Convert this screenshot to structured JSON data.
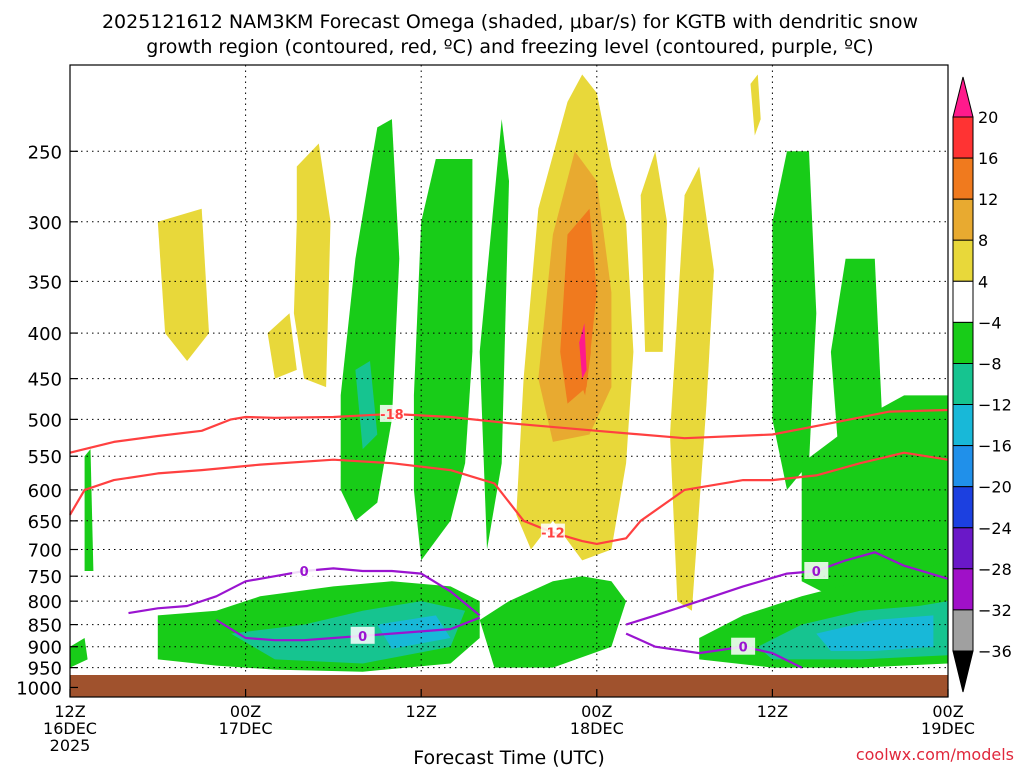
{
  "chart_data": {
    "type": "heatmap",
    "title_line1": "2025121612 NAM3KM Forecast Omega (shaded, μbar/s) for KGTB with dendritic snow",
    "title_line2": "growth region (contoured, red, ºC) and freezing level (contoured, purple, ºC)",
    "xlabel": "Forecast Time (UTC)",
    "ylabel": "",
    "credit": "coolwx.com/models",
    "x_ticks": [
      {
        "line1": "12Z",
        "line2": "16DEC",
        "line3": "2025",
        "hour": 0
      },
      {
        "line1": "00Z",
        "line2": "17DEC",
        "line3": "",
        "hour": 12
      },
      {
        "line1": "12Z",
        "line2": "",
        "line3": "",
        "hour": 24
      },
      {
        "line1": "00Z",
        "line2": "18DEC",
        "line3": "",
        "hour": 36
      },
      {
        "line1": "12Z",
        "line2": "",
        "line3": "",
        "hour": 48
      },
      {
        "line1": "00Z",
        "line2": "19DEC",
        "line3": "",
        "hour": 60
      }
    ],
    "xlim": [
      0,
      60
    ],
    "y_ticks": [
      250,
      300,
      350,
      400,
      450,
      500,
      550,
      600,
      650,
      700,
      750,
      800,
      850,
      900,
      950,
      1000
    ],
    "ylim": [
      200,
      1025
    ],
    "y_scale": "log-pressure",
    "grid": true,
    "colorbar": {
      "labels": [
        "20",
        "16",
        "12",
        "8",
        "4",
        "−4",
        "−8",
        "−12",
        "−16",
        "−20",
        "−24",
        "−28",
        "−32",
        "−36"
      ],
      "colors": [
        "#ff1a8c",
        "#ff3333",
        "#f07a1e",
        "#e8aa30",
        "#e8d83a",
        "#ffffff",
        "#18cc18",
        "#16c490",
        "#18b8d8",
        "#2090ea",
        "#1c40e0",
        "#6a18c8",
        "#a010c8",
        "#a0a0a0",
        "#000000"
      ]
    },
    "colors": {
      "strong_rise": "#f07a1e",
      "moderate_rise": "#e8aa30",
      "weak_rise": "#e8d83a",
      "weak_sink": "#18cc18",
      "moderate_sink": "#16c490",
      "strong_sink": "#18b8d8",
      "dgz_contour": "#ff4040",
      "freezing_contour": "#9a14d0",
      "ground": "#a0522d"
    },
    "series": [
      {
        "name": "-18",
        "x": [
          0,
          3,
          6,
          9,
          11,
          12,
          14,
          18,
          22,
          26,
          30,
          36,
          42,
          48,
          52,
          56,
          60
        ],
        "y": [
          545,
          530,
          522,
          515,
          500,
          497,
          498,
          497,
          493,
          497,
          505,
          515,
          525,
          520,
          505,
          490,
          488
        ]
      },
      {
        "name": "-12",
        "x": [
          0,
          1,
          3,
          6,
          9,
          13,
          18,
          22,
          26,
          29,
          31,
          33,
          35,
          36,
          38,
          39,
          42,
          46,
          48,
          51,
          54,
          57,
          60
        ],
        "y": [
          640,
          600,
          585,
          575,
          570,
          562,
          555,
          560,
          570,
          590,
          650,
          670,
          685,
          690,
          680,
          650,
          600,
          585,
          585,
          578,
          560,
          545,
          555
        ]
      },
      {
        "name": "0",
        "x": [
          4,
          6,
          8,
          10,
          12,
          14,
          16,
          18,
          20,
          22,
          24,
          26,
          28
        ],
        "y": [
          825,
          815,
          810,
          790,
          760,
          750,
          740,
          735,
          740,
          740,
          745,
          780,
          830
        ]
      },
      {
        "name": "0",
        "x": [
          10,
          12,
          14,
          16,
          18,
          20,
          22,
          24,
          26,
          28
        ],
        "y": [
          840,
          880,
          885,
          885,
          880,
          875,
          870,
          865,
          860,
          835
        ]
      },
      {
        "name": "0",
        "x": [
          38,
          40,
          43,
          46,
          49,
          51,
          53,
          55,
          57,
          60
        ],
        "y": [
          850,
          830,
          800,
          770,
          745,
          740,
          720,
          705,
          730,
          755
        ]
      },
      {
        "name": "0",
        "x": [
          38,
          40,
          43,
          46,
          48,
          50
        ],
        "y": [
          870,
          900,
          915,
          900,
          915,
          950
        ]
      }
    ]
  }
}
